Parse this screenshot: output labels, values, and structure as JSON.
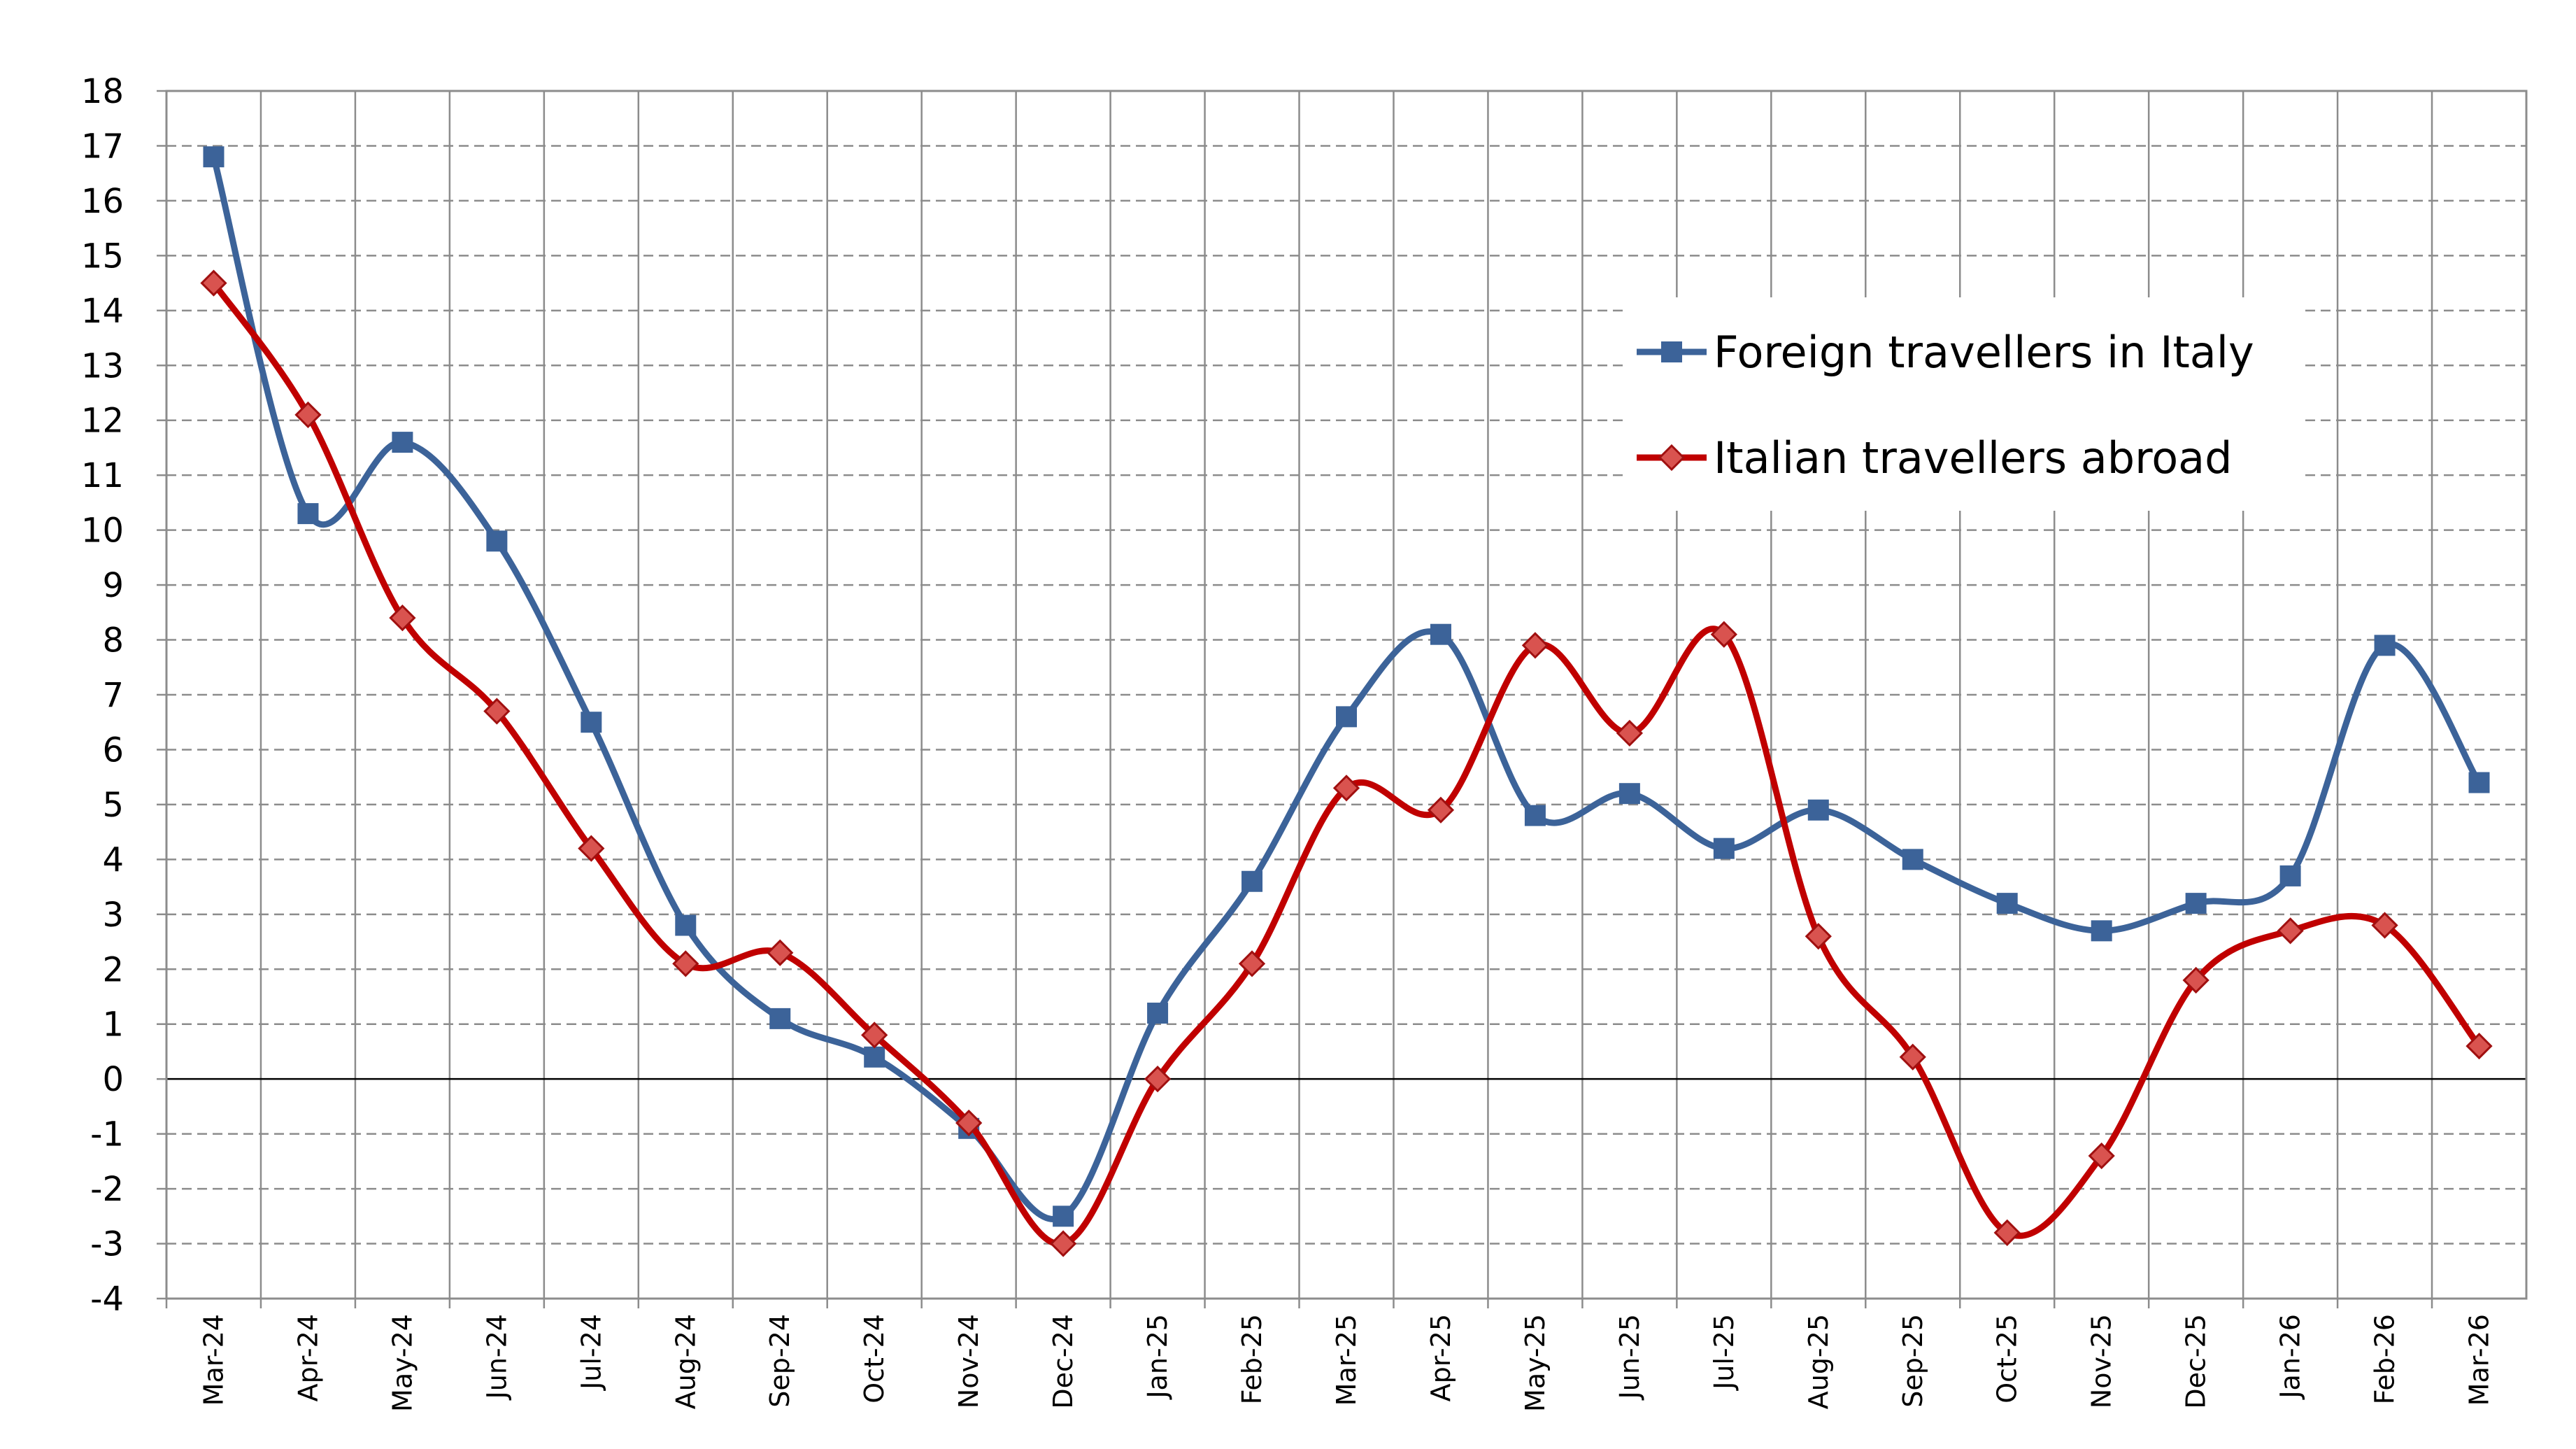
{
  "chart_data": {
    "type": "line",
    "categories": [
      "Mar-24",
      "Apr-24",
      "May-24",
      "Jun-24",
      "Jul-24",
      "Aug-24",
      "Sep-24",
      "Oct-24",
      "Nov-24",
      "Dec-24",
      "Jan-25",
      "Feb-25",
      "Mar-25",
      "Apr-25",
      "May-25",
      "Jun-25",
      "Jul-25",
      "Aug-25",
      "Sep-25",
      "Oct-25",
      "Nov-25",
      "Dec-25",
      "Jan-26",
      "Feb-26",
      "Mar-26"
    ],
    "series": [
      {
        "name": "Foreign travellers in Italy",
        "color": "#3c6399",
        "marker": "square",
        "values": [
          16.8,
          10.3,
          11.6,
          9.8,
          6.5,
          2.8,
          1.1,
          0.4,
          -0.9,
          -2.5,
          1.2,
          3.6,
          6.6,
          8.1,
          4.8,
          5.2,
          4.2,
          4.9,
          4.0,
          3.2,
          2.7,
          3.2,
          3.7,
          7.9,
          5.4
        ]
      },
      {
        "name": "Italian travellers abroad",
        "color": "#c00000",
        "marker": "diamond",
        "values": [
          14.5,
          12.1,
          8.4,
          6.7,
          4.2,
          2.1,
          2.3,
          0.8,
          -0.8,
          -3.0,
          0.0,
          2.1,
          5.3,
          4.9,
          7.9,
          6.3,
          8.1,
          2.6,
          0.4,
          -2.8,
          -1.4,
          1.8,
          2.7,
          2.8,
          0.6
        ]
      }
    ],
    "ylim": [
      -4,
      18
    ],
    "yticks": [
      -4,
      -3,
      -2,
      -1,
      0,
      1,
      2,
      3,
      4,
      5,
      6,
      7,
      8,
      9,
      10,
      11,
      12,
      13,
      14,
      15,
      16,
      17,
      18
    ],
    "grid": true,
    "legend": "upper right"
  }
}
